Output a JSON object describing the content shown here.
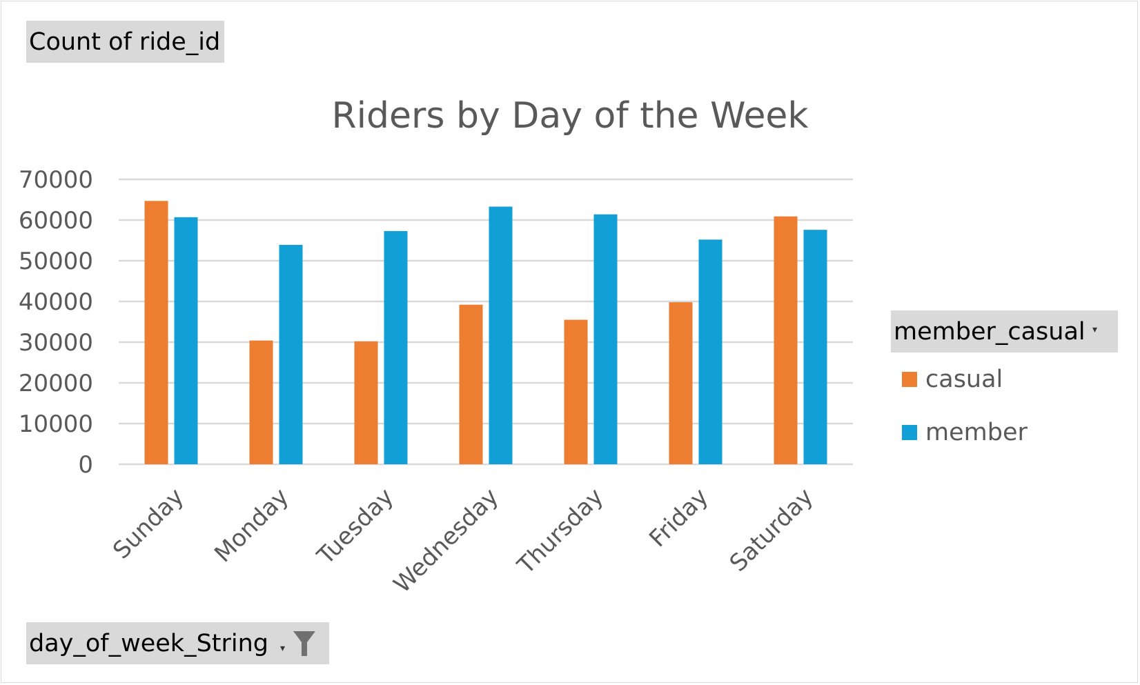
{
  "pivot": {
    "values_field": "Count of ride_id",
    "axis_field": "day_of_week_String",
    "legend_field": "member_casual"
  },
  "icons": {
    "axis_dropdown": "chevron-down-icon",
    "axis_filter": "filter-icon",
    "legend_dropdown": "chevron-down-icon"
  },
  "colors": {
    "casual": "#ED7D31",
    "member": "#119FD6",
    "gridline": "#D9D9D9",
    "text": "#595959"
  },
  "chart_data": {
    "type": "bar",
    "title": "Riders by Day of the Week",
    "xlabel": "",
    "ylabel": "",
    "categories": [
      "Sunday",
      "Monday",
      "Tuesday",
      "Wednesday",
      "Thursday",
      "Friday",
      "Saturday"
    ],
    "series": [
      {
        "name": "casual",
        "values": [
          64700,
          30400,
          30200,
          39200,
          35500,
          39800,
          60900
        ]
      },
      {
        "name": "member",
        "values": [
          60700,
          53900,
          57300,
          63300,
          61400,
          55200,
          57600
        ]
      }
    ],
    "ylim": [
      0,
      70000
    ],
    "yticks": [
      "0",
      "10000",
      "20000",
      "30000",
      "40000",
      "50000",
      "60000",
      "70000"
    ],
    "grid": true,
    "legend_position": "right"
  }
}
